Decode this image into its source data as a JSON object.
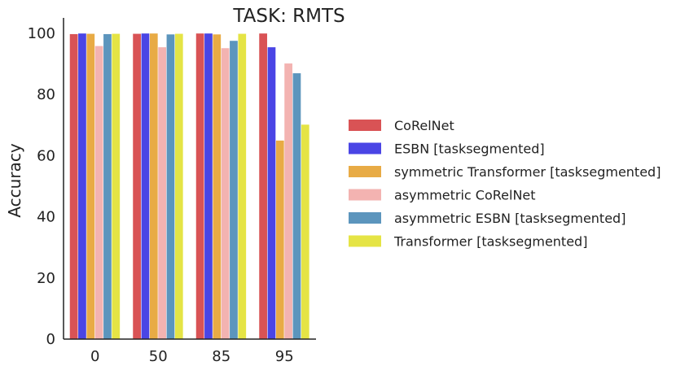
{
  "chart_data": {
    "type": "bar",
    "title": "TASK: RMTS",
    "xlabel": "",
    "ylabel": "Accuracy",
    "ylim": [
      0,
      105
    ],
    "yticks": [
      0,
      20,
      40,
      60,
      80,
      100
    ],
    "categories": [
      "0",
      "50",
      "85",
      "95"
    ],
    "grid": false,
    "legend_position": "right",
    "series": [
      {
        "name": "CoRelNet",
        "color": "#d95355",
        "values": [
          99.7,
          99.8,
          99.9,
          99.9
        ]
      },
      {
        "name": "ESBN [tasksegmented]",
        "color": "#4a45e5",
        "values": [
          99.9,
          99.9,
          99.9,
          95.4
        ]
      },
      {
        "name": "symmetric Transformer [tasksegmented]",
        "color": "#e8ab45",
        "values": [
          99.8,
          99.9,
          99.6,
          64.9
        ]
      },
      {
        "name": "asymmetric CoRelNet",
        "color": "#f3b3b1",
        "values": [
          95.8,
          95.4,
          95.1,
          90.1
        ]
      },
      {
        "name": "asymmetric ESBN [tasksegmented]",
        "color": "#5c95bd",
        "values": [
          99.7,
          99.6,
          97.5,
          86.9
        ]
      },
      {
        "name": "Transformer [tasksegmented]",
        "color": "#e5e445",
        "values": [
          99.8,
          99.8,
          99.8,
          70.1
        ]
      }
    ]
  }
}
